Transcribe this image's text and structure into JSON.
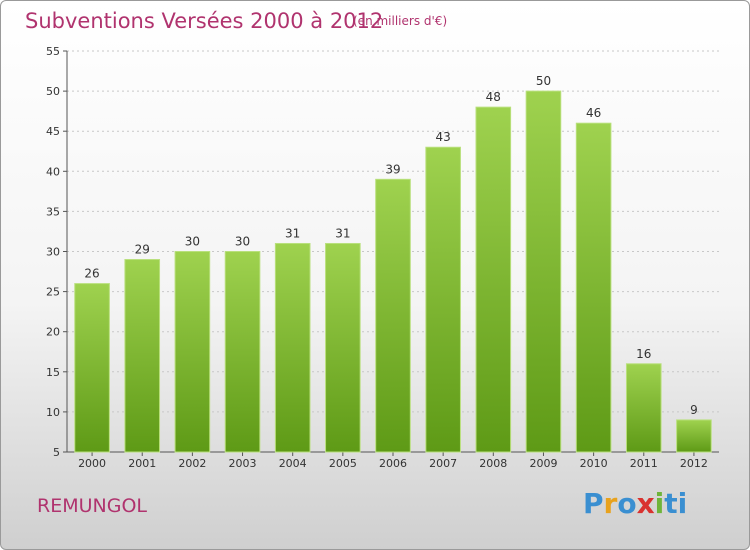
{
  "title": "Subventions Versées 2000 à 2012",
  "subtitle": "(en milliers d'€)",
  "location": "REMUNGOL",
  "logo": {
    "letters": [
      "P",
      "r",
      "o",
      "x",
      "i",
      "t",
      "i"
    ],
    "alt": "Proxiti"
  },
  "colors": {
    "title": "#b0336e",
    "bar_top": "#9fd24f",
    "bar_bottom": "#5e9a16",
    "grid": "#c8c8c8"
  },
  "chart_data": {
    "type": "bar",
    "categories": [
      "2000",
      "2001",
      "2002",
      "2003",
      "2004",
      "2005",
      "2006",
      "2007",
      "2008",
      "2009",
      "2010",
      "2011",
      "2012"
    ],
    "values": [
      26,
      29,
      30,
      30,
      31,
      31,
      39,
      43,
      48,
      50,
      46,
      16,
      9
    ],
    "ylim": [
      5,
      55
    ],
    "yticks": [
      5,
      10,
      15,
      20,
      25,
      30,
      35,
      40,
      45,
      50,
      55
    ],
    "grid": true,
    "legend": "none"
  }
}
